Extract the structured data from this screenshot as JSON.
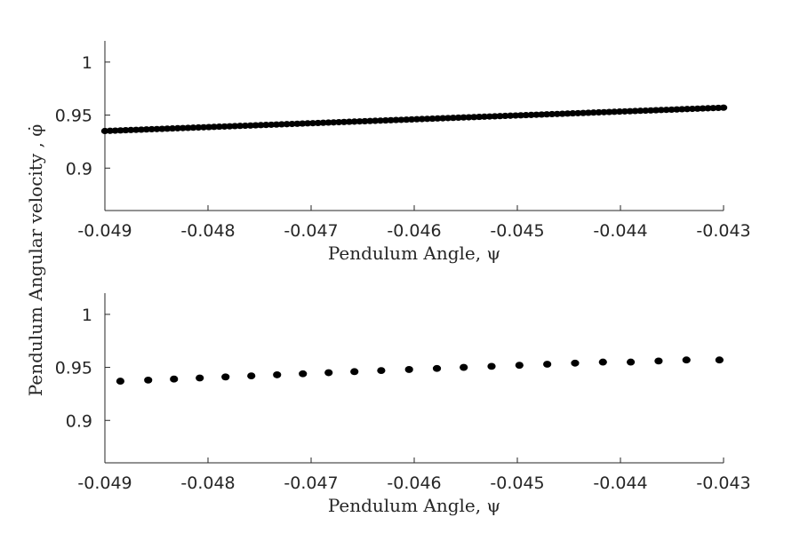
{
  "chart_data": [
    {
      "type": "scatter",
      "xlabel": "Pendulum Angle, ψ",
      "ylabel": "Pendulum Angular velocity , φ̇",
      "xlim": [
        -0.049,
        -0.043
      ],
      "ylim": [
        0.86,
        1.02
      ],
      "xticks": [
        "-0.049",
        "-0.048",
        "-0.047",
        "-0.046",
        "-0.045",
        "-0.044",
        "-0.043"
      ],
      "yticks": [
        "1",
        "0.95",
        "0.9"
      ],
      "grid": false,
      "series": [
        {
          "x_start": -0.049,
          "x_end": -0.043,
          "y_start": 0.935,
          "y_end": 0.957,
          "n_points": 120,
          "color": "#000000"
        }
      ]
    },
    {
      "type": "scatter",
      "xlabel": "Pendulum Angle, ψ",
      "xlim": [
        -0.049,
        -0.043
      ],
      "ylim": [
        0.86,
        1.02
      ],
      "xticks": [
        "-0.049",
        "-0.048",
        "-0.047",
        "-0.046",
        "-0.045",
        "-0.044",
        "-0.043"
      ],
      "yticks": [
        "1",
        "0.95",
        "0.9"
      ],
      "grid": false,
      "series": [
        {
          "x": [
            -0.04885,
            -0.04858,
            -0.04833,
            -0.04808,
            -0.04783,
            -0.04758,
            -0.04733,
            -0.04708,
            -0.04683,
            -0.04658,
            -0.04632,
            -0.04605,
            -0.04578,
            -0.04552,
            -0.04525,
            -0.04498,
            -0.04471,
            -0.04444,
            -0.04417,
            -0.0439,
            -0.04363,
            -0.04336,
            -0.04304
          ],
          "y": [
            0.937,
            0.938,
            0.939,
            0.94,
            0.941,
            0.942,
            0.943,
            0.944,
            0.945,
            0.946,
            0.947,
            0.948,
            0.949,
            0.95,
            0.951,
            0.952,
            0.953,
            0.954,
            0.955,
            0.955,
            0.956,
            0.957,
            0.957
          ],
          "color": "#000000"
        }
      ]
    }
  ]
}
